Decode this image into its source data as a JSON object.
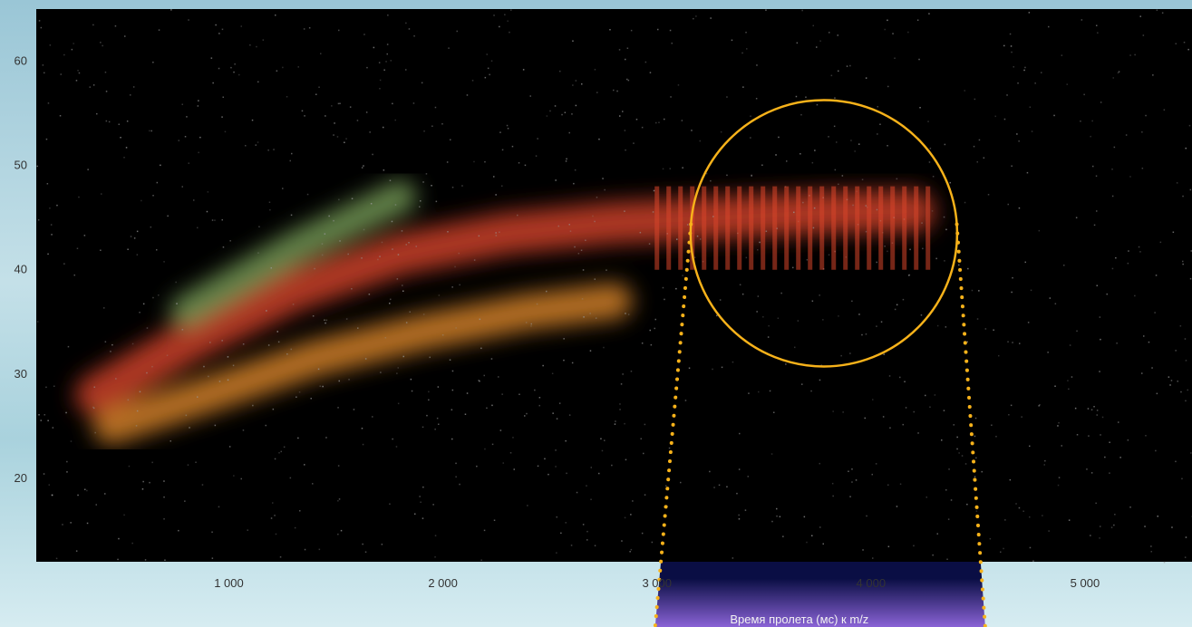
{
  "chart_data": {
    "type": "heatmap",
    "title": "",
    "xlabel": "Время пролета (мс) к m/z",
    "ylabel": "",
    "xlim": [
      100,
      5500
    ],
    "ylim": [
      12,
      65
    ],
    "x_ticks": [
      {
        "value": 1000,
        "label": "1 000"
      },
      {
        "value": 2000,
        "label": "2 000"
      },
      {
        "value": 3000,
        "label": "3 000"
      },
      {
        "value": 4000,
        "label": "4 000"
      },
      {
        "value": 5000,
        "label": "5 000"
      }
    ],
    "y_ticks": [
      {
        "value": 20,
        "label": "20"
      },
      {
        "value": 30,
        "label": "30"
      },
      {
        "value": 40,
        "label": "40"
      },
      {
        "value": 50,
        "label": "50"
      },
      {
        "value": 60,
        "label": "60"
      }
    ],
    "grid": false,
    "bands": [
      {
        "points": [
          [
            380,
            28
          ],
          [
            800,
            33
          ],
          [
            1300,
            38
          ],
          [
            1800,
            41.5
          ],
          [
            2300,
            43.5
          ],
          [
            2800,
            44.5
          ],
          [
            3300,
            45
          ],
          [
            3800,
            45.5
          ],
          [
            4200,
            45.6
          ]
        ],
        "intensity": "high"
      },
      {
        "points": [
          [
            450,
            25
          ],
          [
            900,
            28
          ],
          [
            1400,
            31.5
          ],
          [
            1900,
            34
          ],
          [
            2400,
            36
          ],
          [
            2800,
            37
          ]
        ],
        "intensity": "medium"
      },
      {
        "points": [
          [
            800,
            36
          ],
          [
            1300,
            42
          ],
          [
            1800,
            47
          ]
        ],
        "intensity": "low"
      }
    ],
    "highlight_circle": {
      "x": 3780,
      "y": 43.5
    },
    "zoom_region": {
      "x_start": 3000,
      "x_end": 4500
    }
  },
  "colors": {
    "plot_background": "#000000",
    "band_high": "#d8452a",
    "band_medium": "#e08a2a",
    "band_low": "#7aa15a",
    "highlight": "#f7b21a",
    "zoom_top": "#1f5fd6",
    "zoom_bottom": "#8a63d6"
  }
}
